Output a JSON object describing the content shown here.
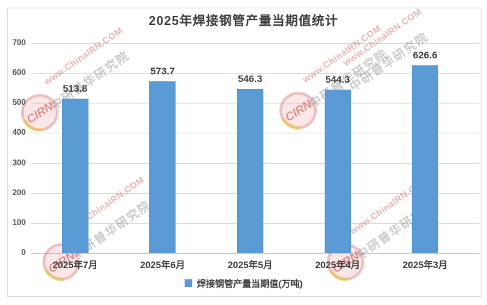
{
  "title": "2025年焊接钢管产量当期值统计",
  "chart_data": {
    "type": "bar",
    "title": "2025年焊接钢管产量当期值统计",
    "categories": [
      "2025年7月",
      "2025年6月",
      "2025年5月",
      "2025年4月",
      "2025年3月"
    ],
    "values": [
      513.8,
      573.7,
      546.3,
      544.3,
      626.6
    ],
    "series_name": "焊接钢管产量当期值(万吨)",
    "data_labels": [
      "513.8",
      "573.7",
      "546.3",
      "544.3",
      "626.6"
    ],
    "ylim": [
      0,
      700
    ],
    "yticks": [
      0,
      100,
      200,
      300,
      400,
      500,
      600,
      700
    ],
    "grid": true,
    "legend_position": "bottom",
    "bar_color": "#5B9BD5"
  },
  "legend": {
    "label": "焊接钢管产量当期值(万吨)",
    "swatch_color": "#5B9BD5"
  },
  "watermark": {
    "logo_text": "CIRN",
    "url_text": "www.ChinaIRN.COM",
    "cn_text": "中研普华研究院"
  },
  "colors": {
    "bar": "#5B9BD5",
    "gridline": "#D9D9D9",
    "axis_line": "#B3B3B3",
    "title_text": "#404040",
    "tick_text": "#595959",
    "label_text": "#404040"
  }
}
